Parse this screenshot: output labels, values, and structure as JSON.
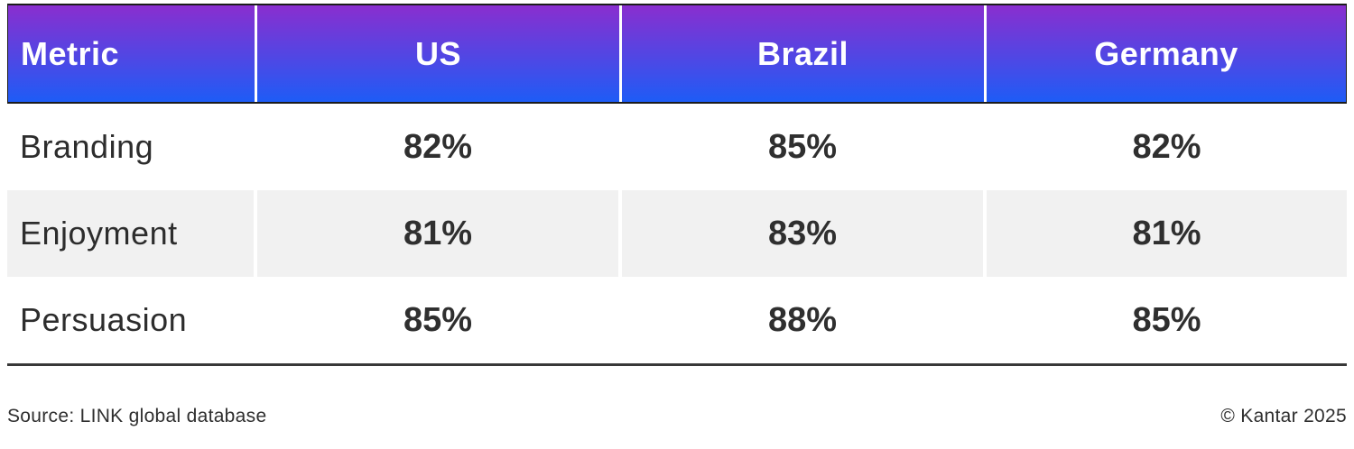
{
  "chart_data": {
    "type": "table",
    "columns": [
      "Metric",
      "US",
      "Brazil",
      "Germany"
    ],
    "rows": [
      {
        "metric": "Branding",
        "values": [
          "82%",
          "85%",
          "82%"
        ]
      },
      {
        "metric": "Enjoyment",
        "values": [
          "81%",
          "83%",
          "81%"
        ]
      },
      {
        "metric": "Persuasion",
        "values": [
          "85%",
          "88%",
          "85%"
        ]
      }
    ],
    "source_note": "Source: LINK global database",
    "copyright_note": "© Kantar 2025"
  },
  "style": {
    "header_gradient_top": "#8a2ecf",
    "header_gradient_bottom": "#1e5cf6",
    "header_text_color": "#ffffff",
    "header_border_color": "#1c1c1c",
    "alt_row_background": "#f1f1f1",
    "body_text_color": "#2d2d2d",
    "rule_color": "#383838"
  }
}
